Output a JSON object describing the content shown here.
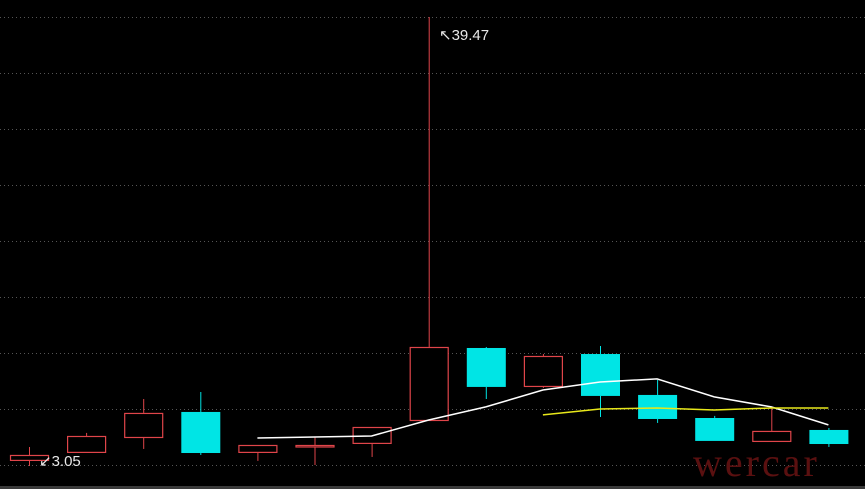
{
  "chart_data": {
    "type": "candlestick",
    "title": "",
    "xlabel": "",
    "ylabel": "",
    "ylim": [
      1.18,
      40.85
    ],
    "grid": true,
    "up_color": "#e0454a",
    "down_color": "#00e5e5",
    "candles": [
      {
        "open": 3.54,
        "high": 4.59,
        "low": 3.05,
        "close": 3.94
      },
      {
        "open": 4.19,
        "high": 5.73,
        "low": 4.19,
        "close": 5.48
      },
      {
        "open": 5.4,
        "high": 8.48,
        "low": 4.43,
        "close": 7.35
      },
      {
        "open": 7.43,
        "high": 9.05,
        "low": 3.94,
        "close": 4.1
      },
      {
        "open": 4.19,
        "high": 4.75,
        "low": 3.46,
        "close": 4.75
      },
      {
        "open": 4.67,
        "high": 5.4,
        "low": 3.13,
        "close": 4.75
      },
      {
        "open": 4.92,
        "high": 6.21,
        "low": 3.78,
        "close": 6.21
      },
      {
        "open": 6.78,
        "high": 39.47,
        "low": 6.78,
        "close": 12.7
      },
      {
        "open": 12.62,
        "high": 12.7,
        "low": 8.48,
        "close": 9.46
      },
      {
        "open": 9.54,
        "high": 12.13,
        "low": 9.38,
        "close": 11.97
      },
      {
        "open": 12.13,
        "high": 12.78,
        "low": 7.02,
        "close": 8.73
      },
      {
        "open": 8.81,
        "high": 10.03,
        "low": 6.54,
        "close": 6.86
      },
      {
        "open": 6.94,
        "high": 7.11,
        "low": 5.08,
        "close": 5.08
      },
      {
        "open": 5.08,
        "high": 7.84,
        "low": 5.08,
        "close": 5.89
      },
      {
        "open": 5.97,
        "high": 6.13,
        "low": 4.59,
        "close": 4.83
      }
    ],
    "series": [
      {
        "color": "#ffffff",
        "values": [
          null,
          null,
          null,
          null,
          5.32,
          5.4,
          5.48,
          6.78,
          7.84,
          9.21,
          9.86,
          10.11,
          8.65,
          7.84,
          6.38
        ]
      },
      {
        "color": "#e8e81a",
        "values": [
          null,
          null,
          null,
          null,
          null,
          null,
          null,
          null,
          null,
          7.19,
          7.67,
          7.75,
          7.59,
          7.75,
          7.75
        ]
      }
    ],
    "annotations": {
      "max_label": "39.47",
      "min_label": "3.05",
      "max_arrow": "↖",
      "min_arrow": "↙"
    }
  },
  "watermark": "wercar"
}
